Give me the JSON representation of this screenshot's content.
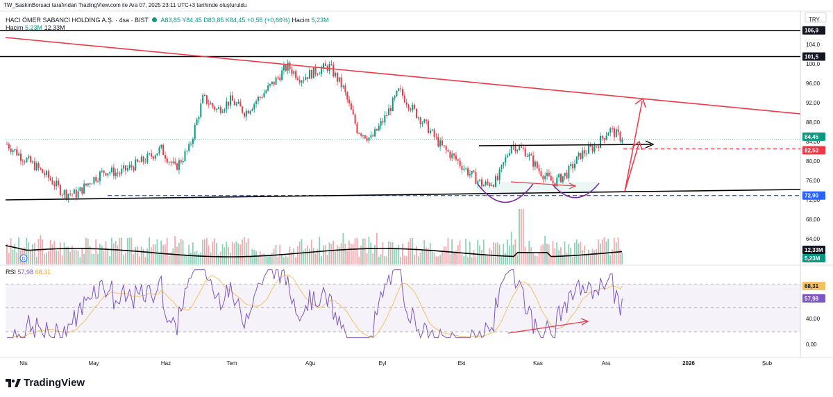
{
  "publish_note": "TW_SaskinBorsaci tarafından TradingView.com ile Ara 07, 2025 23:11 UTC+3 tarihinde oluşturuldu",
  "symbol": {
    "name": "HACI ÖMER SABANCI HOLDİNG A.Ş.",
    "interval": "4sa",
    "exchange": "BIST",
    "ohlc": "A83,85  Y84,45  D83,85  K84,45  +0,55 (+0,66%)",
    "volume_label": "Hacim",
    "volume_value": "5,23M"
  },
  "volume_legend": {
    "label": "Hacim",
    "value": "5,23M",
    "ma": "12,33M"
  },
  "currency": "TRY",
  "brand": "TradingView",
  "rsi_legend": {
    "label": "RSI",
    "value": "57,98",
    "ma": "68,31"
  },
  "colors": {
    "up": "#089981",
    "down": "#f23645",
    "rsi": "#7e57c2",
    "rsi_ma": "#f5c163",
    "resistance": "#f23645",
    "support": "#000000",
    "dashed_blue": "#2962ff",
    "arc": "#7b1fa2"
  },
  "chart_data": [
    {
      "type": "candlestick",
      "title": "HACI ÖMER SABANCI HOLDİNG A.Ş. · 4sa · BIST",
      "y_axis_ticks": [
        0.0,
        40.0,
        64.0,
        68.0,
        72.0,
        76.0,
        80.0,
        84.0,
        88.0,
        92.0,
        96.0,
        100.0,
        104.0
      ],
      "x_axis_ticks": [
        "Nis",
        "May",
        "Haz",
        "Tem",
        "Ağu",
        "Eyl",
        "Eki",
        "Kas",
        "Ara",
        "2026",
        "Şub"
      ],
      "price_labels": [
        {
          "value": "106,9",
          "style": "black"
        },
        {
          "value": "101,5",
          "style": "black"
        },
        {
          "value": "84,45",
          "style": "green"
        },
        {
          "value": "82,50",
          "style": "red"
        },
        {
          "value": "72,90",
          "style": "blue"
        },
        {
          "value": "12,33M",
          "style": "black"
        },
        {
          "value": "5,23M",
          "style": "green"
        }
      ],
      "close_path": [
        [
          "Nis",
          83.5
        ],
        [
          "Nis",
          81
        ],
        [
          "Nis",
          79
        ],
        [
          "May",
          76.5
        ],
        [
          "May",
          73.5
        ],
        [
          "May",
          73.2
        ],
        [
          "May",
          76
        ],
        [
          "Haz",
          78
        ],
        [
          "Haz",
          77.5
        ],
        [
          "Haz",
          79
        ],
        [
          "Haz",
          80.5
        ],
        [
          "Haz",
          82.5
        ],
        [
          "Haz",
          78.5
        ],
        [
          "Tem",
          82.5
        ],
        [
          "Tem",
          93
        ],
        [
          "Tem",
          90.5
        ],
        [
          "Tem",
          92.5
        ],
        [
          "Tem",
          90
        ],
        [
          "Ağu",
          93
        ],
        [
          "Ağu",
          96
        ],
        [
          "Ağu",
          99.5
        ],
        [
          "Ağu",
          97
        ],
        [
          "Ağu",
          98.5
        ],
        [
          "Eyl",
          99.5
        ],
        [
          "Eyl",
          95
        ],
        [
          "Eyl",
          86.5
        ],
        [
          "Eyl",
          84.5
        ],
        [
          "Eyl",
          89
        ],
        [
          "Eyl",
          94.5
        ],
        [
          "Eki",
          90.5
        ],
        [
          "Eki",
          87
        ],
        [
          "Eki",
          83
        ],
        [
          "Eki",
          80.5
        ],
        [
          "Eki",
          77.5
        ],
        [
          "Eki",
          75
        ],
        [
          "Kas",
          76
        ],
        [
          "Kas",
          83.5
        ],
        [
          "Kas",
          82
        ],
        [
          "Kas",
          78
        ],
        [
          "Kas",
          75.5
        ],
        [
          "Kas",
          77.5
        ],
        [
          "Ara",
          81.5
        ],
        [
          "Ara",
          83
        ],
        [
          "Ara",
          86.5
        ],
        [
          "Ara",
          84.45
        ]
      ],
      "horizontal_levels": [
        106.9,
        101.5,
        72.9,
        82.5
      ],
      "annotations": [
        "descending resistance trendline",
        "rising support trendline",
        "two rounded bottoms",
        "breakout arrows"
      ]
    },
    {
      "type": "bar",
      "title": "Hacim",
      "ma_value": "12,33M",
      "last_value": "5,23M"
    },
    {
      "type": "line",
      "title": "RSI",
      "last_value": 57.98,
      "ma_value": 68.31,
      "levels": [
        70,
        50,
        30
      ]
    }
  ]
}
